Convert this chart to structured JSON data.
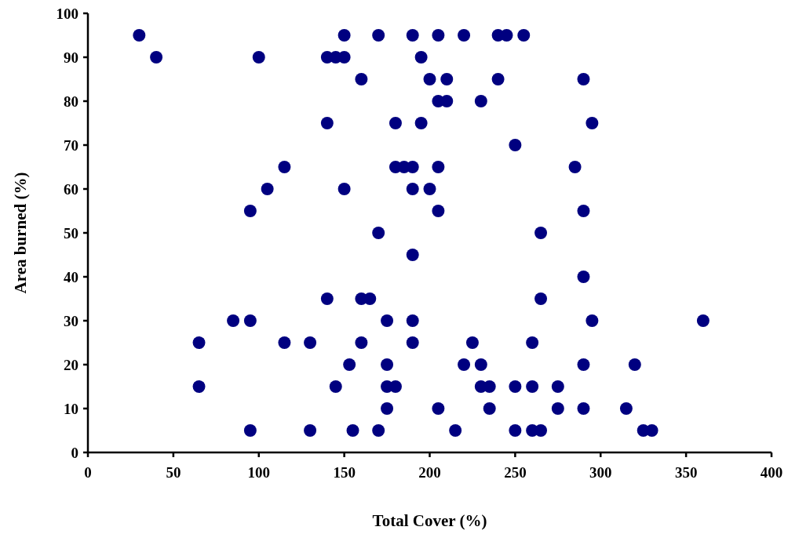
{
  "chart_data": {
    "type": "scatter",
    "xlabel": "Total Cover (%)",
    "ylabel": "Area burned (%)",
    "xlim": [
      0,
      400
    ],
    "ylim": [
      0,
      100
    ],
    "xticks": [
      0,
      50,
      100,
      150,
      200,
      250,
      300,
      350,
      400
    ],
    "yticks": [
      0,
      10,
      20,
      30,
      40,
      50,
      60,
      70,
      80,
      90,
      100
    ],
    "grid": false,
    "marker": "circle",
    "series": [
      {
        "color": "#000080",
        "x": [
          30,
          150,
          170,
          190,
          205,
          220,
          240,
          245,
          255,
          40,
          100,
          140,
          145,
          150,
          195,
          160,
          200,
          210,
          240,
          290,
          205,
          210,
          230,
          140,
          180,
          195,
          295,
          250,
          115,
          180,
          185,
          190,
          205,
          285,
          105,
          150,
          190,
          200,
          95,
          205,
          290,
          170,
          265,
          190,
          290,
          140,
          160,
          165,
          265,
          85,
          95,
          175,
          190,
          295,
          360,
          65,
          115,
          130,
          160,
          190,
          225,
          260,
          153,
          175,
          220,
          230,
          290,
          320,
          65,
          145,
          175,
          180,
          230,
          235,
          250,
          260,
          275,
          175,
          205,
          235,
          275,
          290,
          315,
          95,
          130,
          155,
          170,
          215,
          250,
          260,
          265,
          325,
          330
        ],
        "values": [
          95,
          95,
          95,
          95,
          95,
          95,
          95,
          95,
          95,
          90,
          90,
          90,
          90,
          90,
          90,
          85,
          85,
          85,
          85,
          85,
          80,
          80,
          80,
          75,
          75,
          75,
          75,
          70,
          65,
          65,
          65,
          65,
          65,
          65,
          60,
          60,
          60,
          60,
          55,
          55,
          55,
          50,
          50,
          45,
          40,
          35,
          35,
          35,
          35,
          30,
          30,
          30,
          30,
          30,
          30,
          25,
          25,
          25,
          25,
          25,
          25,
          25,
          20,
          20,
          20,
          20,
          20,
          20,
          15,
          15,
          15,
          15,
          15,
          15,
          15,
          15,
          15,
          10,
          10,
          10,
          10,
          10,
          10,
          5,
          5,
          5,
          5,
          5,
          5,
          5,
          5,
          5,
          5
        ]
      }
    ]
  }
}
